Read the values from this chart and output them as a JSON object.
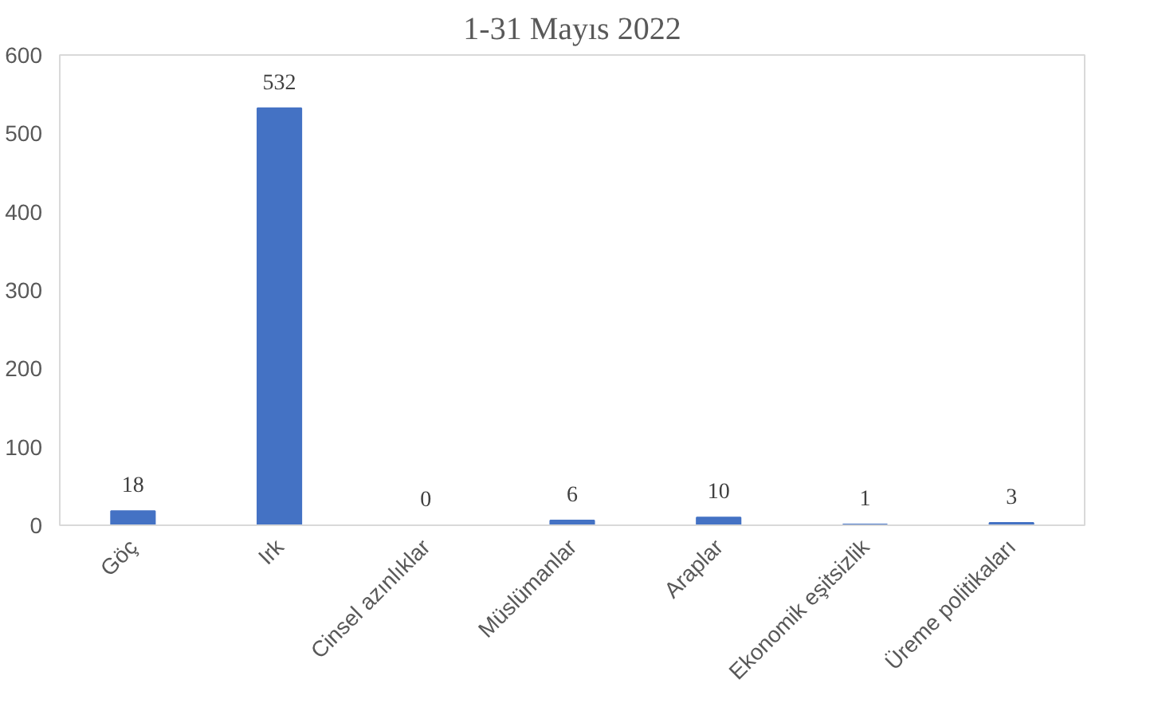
{
  "chart_data": {
    "type": "bar",
    "title": "1-31 Mayıs 2022",
    "categories": [
      "Göç",
      "Irk",
      "Cinsel azınlıklar",
      "Müslümanlar",
      "Araplar",
      "Ekonomik eşitsizlik",
      "Üreme politikaları"
    ],
    "values": [
      18,
      532,
      0,
      6,
      10,
      1,
      3
    ],
    "color": "#4472c4",
    "ylim": [
      0,
      600
    ],
    "yticks": [
      0,
      100,
      200,
      300,
      400,
      500,
      600
    ],
    "data_labels": true,
    "grid": false
  }
}
